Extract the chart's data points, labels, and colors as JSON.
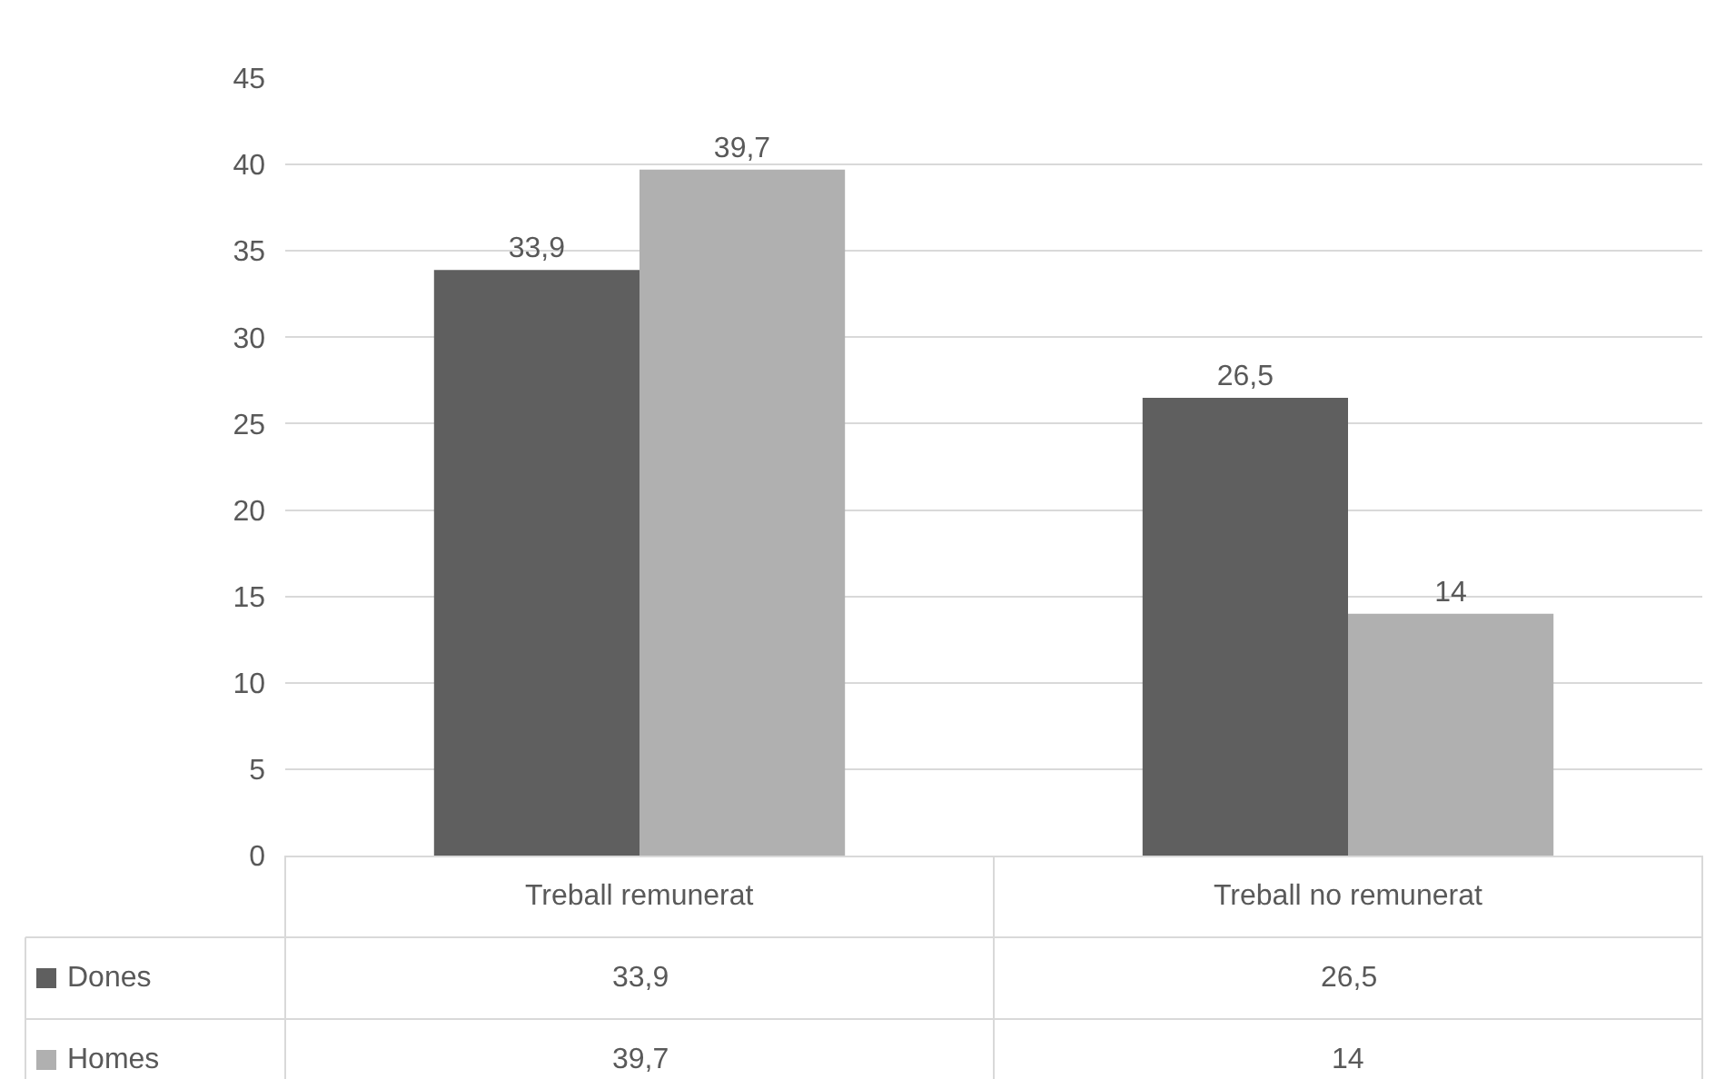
{
  "chart_data": {
    "type": "bar",
    "categories": [
      "Treball remunerat",
      "Treball no remunerat"
    ],
    "series": [
      {
        "name": "Dones",
        "color": "#5f5f5f",
        "values": [
          33.9,
          26.5
        ],
        "value_labels": [
          "33,9",
          "26,5"
        ]
      },
      {
        "name": "Homes",
        "color": "#b0b0b0",
        "values": [
          39.7,
          14
        ],
        "value_labels": [
          "39,7",
          "14"
        ]
      }
    ],
    "ylim": [
      0,
      45
    ],
    "yticks": [
      0,
      5,
      10,
      15,
      20,
      25,
      30,
      35,
      40,
      45
    ],
    "grid": "y",
    "legend": "bottom left"
  }
}
